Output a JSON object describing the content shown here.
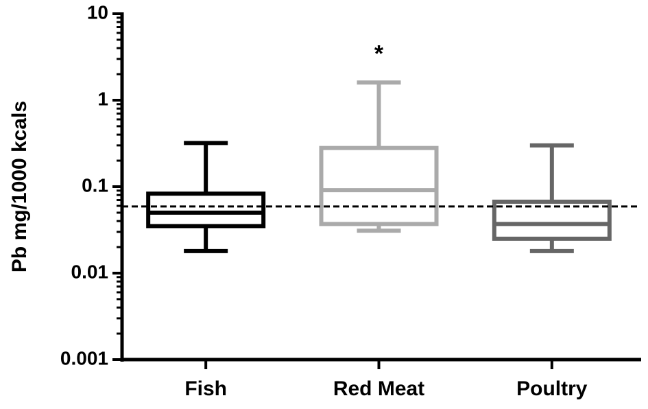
{
  "chart_data": {
    "type": "box",
    "y_label": "Pb mg/1000 kcals",
    "categories": [
      "Fish",
      "Red Meat",
      "Poultry"
    ],
    "boxes": [
      {
        "min": 0.018,
        "q1": 0.035,
        "median": 0.05,
        "q3": 0.083,
        "max": 0.32,
        "color": "#000000"
      },
      {
        "min": 0.031,
        "q1": 0.037,
        "median": 0.091,
        "q3": 0.28,
        "max": 1.6,
        "color": "#aaaaaa",
        "annotation": "*"
      },
      {
        "min": 0.018,
        "q1": 0.025,
        "median": 0.037,
        "q3": 0.067,
        "max": 0.3,
        "color": "#666666"
      }
    ],
    "reference_line": 0.059,
    "log_scale": true,
    "ylim": [
      0.001,
      10
    ],
    "yticks": [
      0.001,
      0.01,
      0.1,
      1,
      10
    ]
  }
}
